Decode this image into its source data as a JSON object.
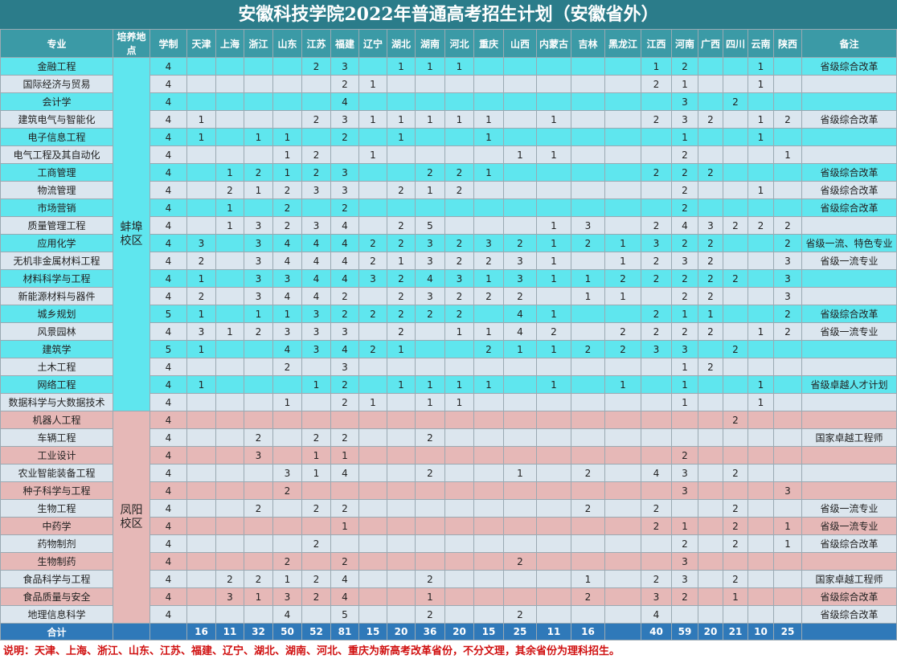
{
  "title": "安徽科技学院2022年普通高考招生计划（安徽省外）",
  "headers": [
    "专业",
    "培养地点",
    "学制",
    "天津",
    "上海",
    "浙江",
    "山东",
    "江苏",
    "福建",
    "辽宁",
    "湖北",
    "湖南",
    "河北",
    "重庆",
    "山西",
    "内蒙古",
    "吉林",
    "黑龙江",
    "江西",
    "河南",
    "广西",
    "四川",
    "云南",
    "陕西",
    "备注"
  ],
  "campuses": [
    {
      "name": "蚌埠校区",
      "rows": [
        {
          "major": "金融工程",
          "years": 4,
          "values": [
            null,
            null,
            null,
            null,
            2,
            3,
            null,
            1,
            1,
            1,
            null,
            null,
            null,
            null,
            null,
            1,
            2,
            null,
            null,
            1,
            null
          ],
          "remark": "省级综合改革"
        },
        {
          "major": "国际经济与贸易",
          "years": 4,
          "values": [
            null,
            null,
            null,
            null,
            null,
            2,
            1,
            null,
            null,
            null,
            null,
            null,
            null,
            null,
            null,
            2,
            1,
            null,
            null,
            1,
            null
          ],
          "remark": null
        },
        {
          "major": "会计学",
          "years": 4,
          "values": [
            null,
            null,
            null,
            null,
            null,
            4,
            null,
            null,
            null,
            null,
            null,
            null,
            null,
            null,
            null,
            null,
            3,
            null,
            2,
            null,
            null
          ],
          "remark": null
        },
        {
          "major": "建筑电气与智能化",
          "years": 4,
          "values": [
            1,
            null,
            null,
            null,
            2,
            3,
            1,
            1,
            1,
            1,
            1,
            null,
            1,
            null,
            null,
            2,
            3,
            2,
            null,
            1,
            2
          ],
          "remark": "省级综合改革"
        },
        {
          "major": "电子信息工程",
          "years": 4,
          "values": [
            1,
            null,
            1,
            1,
            null,
            2,
            null,
            1,
            null,
            null,
            1,
            null,
            null,
            null,
            null,
            null,
            1,
            null,
            null,
            1,
            null
          ],
          "remark": null
        },
        {
          "major": "电气工程及其自动化",
          "years": 4,
          "values": [
            null,
            null,
            null,
            1,
            2,
            null,
            1,
            null,
            null,
            null,
            null,
            1,
            1,
            null,
            null,
            null,
            2,
            null,
            null,
            null,
            1
          ],
          "remark": null
        },
        {
          "major": "工商管理",
          "years": 4,
          "values": [
            null,
            1,
            2,
            1,
            2,
            3,
            null,
            null,
            2,
            2,
            1,
            null,
            null,
            null,
            null,
            2,
            2,
            2,
            null,
            null,
            null
          ],
          "remark": "省级综合改革"
        },
        {
          "major": "物流管理",
          "years": 4,
          "values": [
            null,
            2,
            1,
            2,
            3,
            3,
            null,
            2,
            1,
            2,
            null,
            null,
            null,
            null,
            null,
            null,
            2,
            null,
            null,
            1,
            null
          ],
          "remark": "省级综合改革"
        },
        {
          "major": "市场营销",
          "years": 4,
          "values": [
            null,
            1,
            null,
            2,
            null,
            2,
            null,
            null,
            null,
            null,
            null,
            null,
            null,
            null,
            null,
            null,
            2,
            null,
            null,
            null,
            null
          ],
          "remark": "省级综合改革"
        },
        {
          "major": "质量管理工程",
          "years": 4,
          "values": [
            null,
            1,
            3,
            2,
            3,
            4,
            null,
            2,
            5,
            null,
            null,
            null,
            1,
            3,
            null,
            2,
            4,
            3,
            2,
            2,
            2
          ],
          "remark": null
        },
        {
          "major": "应用化学",
          "years": 4,
          "values": [
            3,
            null,
            3,
            4,
            4,
            4,
            2,
            2,
            3,
            2,
            3,
            2,
            1,
            2,
            1,
            3,
            2,
            2,
            null,
            null,
            2
          ],
          "remark": "省级一流、特色专业"
        },
        {
          "major": "无机非金属材料工程",
          "years": 4,
          "values": [
            2,
            null,
            3,
            4,
            4,
            4,
            2,
            1,
            3,
            2,
            2,
            3,
            1,
            null,
            1,
            2,
            3,
            2,
            null,
            null,
            3
          ],
          "remark": "省级一流专业"
        },
        {
          "major": "材料科学与工程",
          "years": 4,
          "values": [
            1,
            null,
            3,
            3,
            4,
            4,
            3,
            2,
            4,
            3,
            1,
            3,
            1,
            1,
            2,
            2,
            2,
            2,
            2,
            null,
            3
          ],
          "remark": null
        },
        {
          "major": "新能源材料与器件",
          "years": 4,
          "values": [
            2,
            null,
            3,
            4,
            4,
            2,
            null,
            2,
            3,
            2,
            2,
            2,
            null,
            1,
            1,
            null,
            2,
            2,
            null,
            null,
            3
          ],
          "remark": null
        },
        {
          "major": "城乡规划",
          "years": 5,
          "values": [
            1,
            null,
            1,
            1,
            3,
            2,
            2,
            2,
            2,
            2,
            null,
            4,
            1,
            null,
            null,
            2,
            1,
            1,
            null,
            null,
            2
          ],
          "remark": "省级综合改革"
        },
        {
          "major": "风景园林",
          "years": 4,
          "values": [
            3,
            1,
            2,
            3,
            3,
            3,
            null,
            2,
            null,
            1,
            1,
            4,
            2,
            null,
            2,
            2,
            2,
            2,
            null,
            1,
            2
          ],
          "remark": "省级一流专业"
        },
        {
          "major": "建筑学",
          "years": 5,
          "values": [
            1,
            null,
            null,
            4,
            3,
            4,
            2,
            1,
            null,
            null,
            2,
            1,
            1,
            2,
            2,
            3,
            3,
            null,
            2,
            null,
            null
          ],
          "remark": null
        },
        {
          "major": "土木工程",
          "years": 4,
          "values": [
            null,
            null,
            null,
            2,
            null,
            3,
            null,
            null,
            null,
            null,
            null,
            null,
            null,
            null,
            null,
            null,
            1,
            2,
            null,
            null,
            null
          ],
          "remark": null
        },
        {
          "major": "网络工程",
          "years": 4,
          "values": [
            1,
            null,
            null,
            null,
            1,
            2,
            null,
            1,
            1,
            1,
            1,
            null,
            1,
            null,
            1,
            null,
            1,
            null,
            null,
            1,
            null
          ],
          "remark": "省级卓越人才计划"
        },
        {
          "major": "数据科学与大数据技术",
          "years": 4,
          "values": [
            null,
            null,
            null,
            1,
            null,
            2,
            1,
            null,
            1,
            1,
            null,
            null,
            null,
            null,
            null,
            null,
            1,
            null,
            null,
            1,
            null
          ],
          "remark": null
        }
      ]
    },
    {
      "name": "凤阳校区",
      "rows": [
        {
          "major": "机器人工程",
          "years": 4,
          "values": [
            null,
            null,
            null,
            null,
            null,
            null,
            null,
            null,
            null,
            null,
            null,
            null,
            null,
            null,
            null,
            null,
            null,
            null,
            2,
            null,
            null
          ],
          "remark": null
        },
        {
          "major": "车辆工程",
          "years": 4,
          "values": [
            null,
            null,
            2,
            null,
            2,
            2,
            null,
            null,
            2,
            null,
            null,
            null,
            null,
            null,
            null,
            null,
            null,
            null,
            null,
            null,
            null
          ],
          "remark": "国家卓越工程师"
        },
        {
          "major": "工业设计",
          "years": 4,
          "values": [
            null,
            null,
            3,
            null,
            1,
            1,
            null,
            null,
            null,
            null,
            null,
            null,
            null,
            null,
            null,
            null,
            2,
            null,
            null,
            null,
            null
          ],
          "remark": null
        },
        {
          "major": "农业智能装备工程",
          "years": 4,
          "values": [
            null,
            null,
            null,
            3,
            1,
            4,
            null,
            null,
            2,
            null,
            null,
            1,
            null,
            2,
            null,
            4,
            3,
            null,
            2,
            null,
            null
          ],
          "remark": null
        },
        {
          "major": "种子科学与工程",
          "years": 4,
          "values": [
            null,
            null,
            null,
            2,
            null,
            null,
            null,
            null,
            null,
            null,
            null,
            null,
            null,
            null,
            null,
            null,
            3,
            null,
            null,
            null,
            3
          ],
          "remark": null
        },
        {
          "major": "生物工程",
          "years": 4,
          "values": [
            null,
            null,
            2,
            null,
            2,
            2,
            null,
            null,
            null,
            null,
            null,
            null,
            null,
            2,
            null,
            2,
            null,
            null,
            2,
            null,
            null
          ],
          "remark": "省级一流专业"
        },
        {
          "major": "中药学",
          "years": 4,
          "values": [
            null,
            null,
            null,
            null,
            null,
            1,
            null,
            null,
            null,
            null,
            null,
            null,
            null,
            null,
            null,
            2,
            1,
            null,
            2,
            null,
            1
          ],
          "remark": "省级一流专业"
        },
        {
          "major": "药物制剂",
          "years": 4,
          "values": [
            null,
            null,
            null,
            null,
            2,
            null,
            null,
            null,
            null,
            null,
            null,
            null,
            null,
            null,
            null,
            null,
            2,
            null,
            2,
            null,
            1
          ],
          "remark": "省级综合改革"
        },
        {
          "major": "生物制药",
          "years": 4,
          "values": [
            null,
            null,
            null,
            2,
            null,
            2,
            null,
            null,
            null,
            null,
            null,
            2,
            null,
            null,
            null,
            null,
            3,
            null,
            null,
            null,
            null
          ],
          "remark": null
        },
        {
          "major": "食品科学与工程",
          "years": 4,
          "values": [
            null,
            2,
            2,
            1,
            2,
            4,
            null,
            null,
            2,
            null,
            null,
            null,
            null,
            1,
            null,
            2,
            3,
            null,
            2,
            null,
            null
          ],
          "remark": "国家卓越工程师"
        },
        {
          "major": "食品质量与安全",
          "years": 4,
          "values": [
            null,
            3,
            1,
            3,
            2,
            4,
            null,
            null,
            1,
            null,
            null,
            null,
            null,
            2,
            null,
            3,
            2,
            null,
            1,
            null,
            null
          ],
          "remark": "省级综合改革"
        },
        {
          "major": "地理信息科学",
          "years": 4,
          "values": [
            null,
            null,
            null,
            4,
            null,
            5,
            null,
            null,
            2,
            null,
            null,
            2,
            null,
            null,
            null,
            4,
            null,
            null,
            null,
            null,
            null
          ],
          "remark": "省级综合改革"
        }
      ]
    }
  ],
  "total": {
    "label": "合计",
    "values": [
      16,
      11,
      32,
      50,
      52,
      81,
      15,
      20,
      36,
      20,
      15,
      25,
      11,
      16,
      null,
      40,
      59,
      20,
      21,
      10,
      25
    ]
  },
  "note": "说明：天津、上海、浙江、山东、江苏、福建、辽宁、湖北、湖南、河北、重庆为新高考改革省份，不分文理，其余省份为理科招生。"
}
